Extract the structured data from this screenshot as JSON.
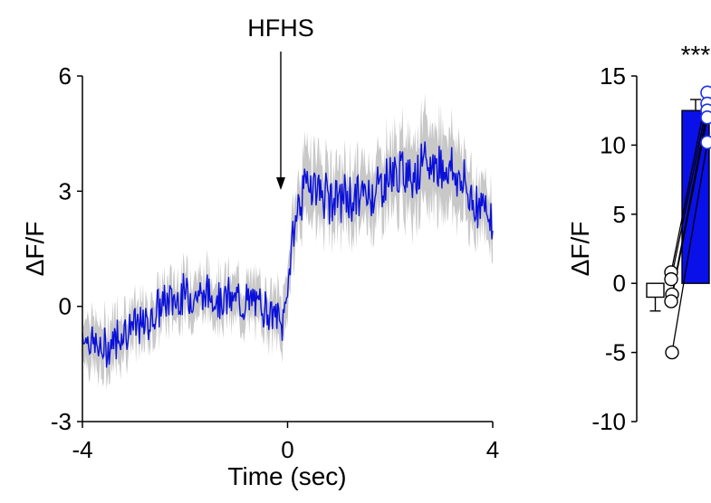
{
  "colors": {
    "trace": "#0a10d8",
    "band": "#c8c8c8",
    "bar": "#0a10e8",
    "axis": "#000000",
    "marker_fill": "#ffffff",
    "post_marker_edge": "#2030e0"
  },
  "chart_data": [
    {
      "type": "line",
      "annotation": "HFHS",
      "annotation_x": -0.05,
      "xlabel": "Time (sec)",
      "ylabel": "ΔF/F",
      "xlim": [
        -4,
        4
      ],
      "ylim": [
        -3,
        6
      ],
      "xticks": [
        -4,
        0,
        4
      ],
      "yticks": [
        -3,
        0,
        3,
        6
      ],
      "x_tick_labels": [
        "-4",
        "0",
        "4"
      ],
      "y_tick_labels": [
        "-3",
        "0",
        "3",
        "6"
      ],
      "grid": false,
      "series": [
        {
          "x": [
            -4.0,
            -3.6,
            -3.2,
            -2.8,
            -2.4,
            -2.0,
            -1.6,
            -1.2,
            -0.8,
            -0.4,
            -0.1,
            0.0,
            0.1,
            0.2,
            0.4,
            0.8,
            1.2,
            1.6,
            2.0,
            2.4,
            2.8,
            3.2,
            3.6,
            4.0
          ],
          "y": [
            -0.7,
            -1.2,
            -0.6,
            -0.5,
            0.1,
            0.3,
            0.3,
            0.2,
            0.1,
            0.0,
            -0.5,
            0.5,
            1.8,
            2.6,
            3.3,
            2.8,
            2.8,
            2.9,
            3.4,
            3.5,
            3.7,
            3.6,
            2.8,
            2.4
          ],
          "error": [
            0.55,
            0.6,
            0.55,
            0.5,
            0.5,
            0.5,
            0.5,
            0.5,
            0.5,
            0.5,
            0.6,
            0.6,
            0.6,
            0.6,
            0.8,
            0.7,
            0.7,
            0.7,
            0.8,
            0.9,
            0.9,
            0.9,
            0.7,
            0.6
          ]
        }
      ]
    },
    {
      "type": "bar",
      "annotation": "***",
      "ylabel": "ΔF/F",
      "ylim": [
        -10,
        15
      ],
      "yticks": [
        -10,
        -5,
        0,
        5,
        10,
        15
      ],
      "y_tick_labels": [
        "-10",
        "-5",
        "0",
        "5",
        "10",
        "15"
      ],
      "grid": false,
      "bars": [
        {
          "value": -1.0,
          "error": 1.0,
          "color": "#ffffff"
        },
        {
          "value": 12.5,
          "error": 0.8,
          "color": "#0a10e8"
        }
      ],
      "paired_points": [
        {
          "pre": 0.8,
          "post": 13.8
        },
        {
          "pre": 0.3,
          "post": 13.0
        },
        {
          "pre": -0.8,
          "post": 12.5
        },
        {
          "pre": -1.3,
          "post": 12.0
        },
        {
          "pre": -5.0,
          "post": 10.2
        }
      ]
    }
  ]
}
